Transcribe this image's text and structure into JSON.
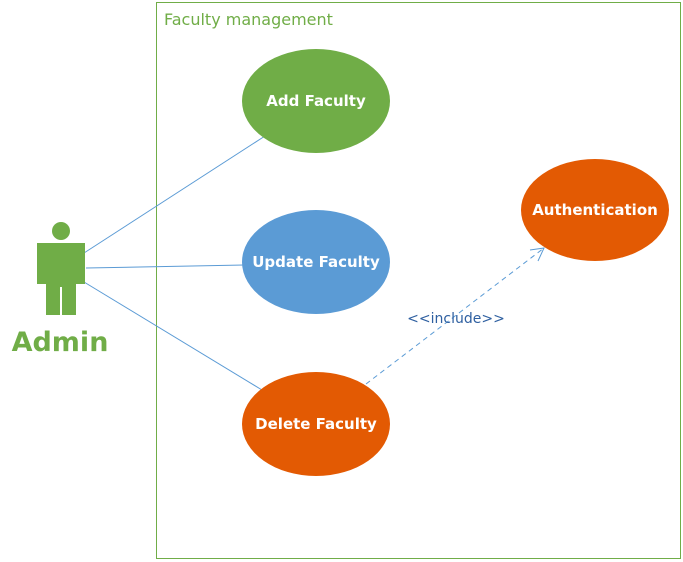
{
  "system": {
    "title": "Faculty management"
  },
  "actor": {
    "label": "Admin"
  },
  "use_cases": {
    "add": "Add Faculty",
    "update": "Update Faculty",
    "delete": "Delete Faculty",
    "auth": "Authentication"
  },
  "relationships": {
    "include_label": "<<include>>"
  },
  "colors": {
    "green": "#70ad47",
    "blue": "#5b9bd5",
    "orange": "#e35a03",
    "line": "#5b9bd5",
    "text_white": "#ffffff"
  }
}
